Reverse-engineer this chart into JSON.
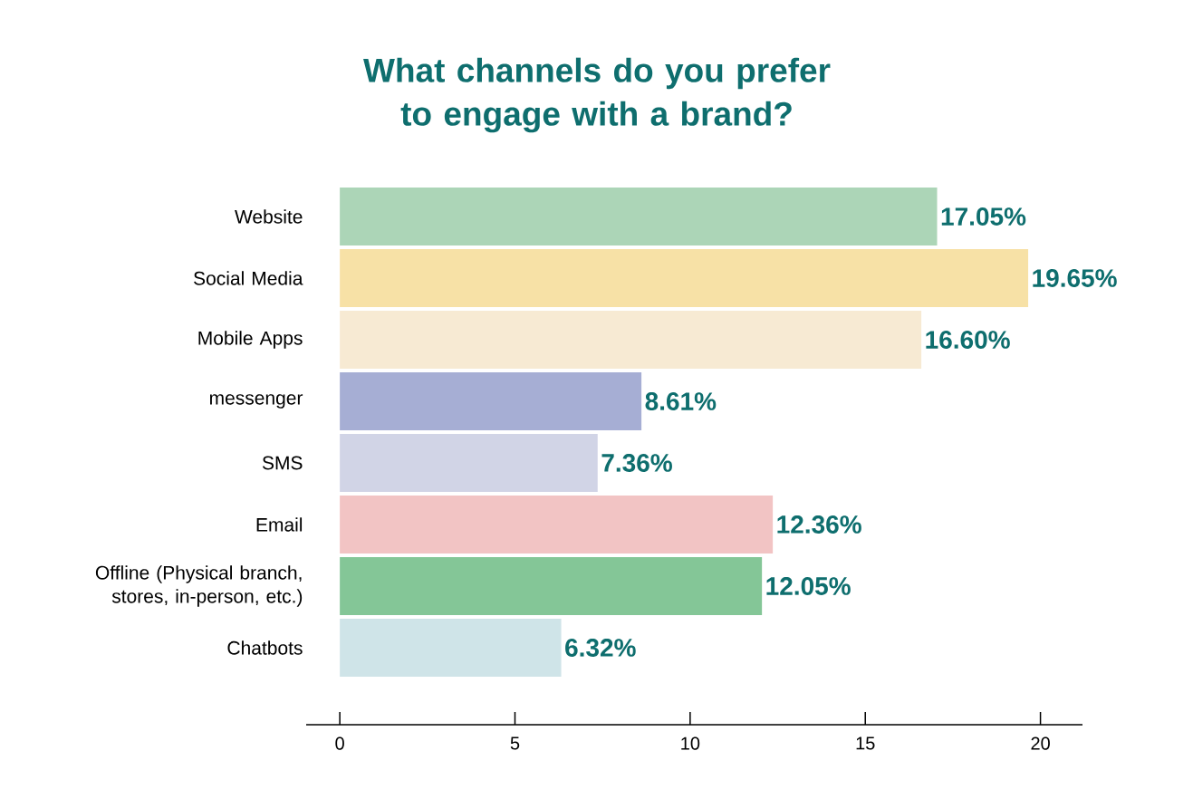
{
  "chart_data": {
    "type": "bar",
    "orientation": "horizontal",
    "title": "What channels do you prefer to engage with a brand?",
    "categories": [
      "Website",
      "Social Media",
      "Mobile Apps",
      "messenger",
      "SMS",
      "Email",
      "Offline (Physical branch, stores, in-person, etc.)",
      "Chatbots"
    ],
    "values": [
      17.05,
      19.65,
      16.6,
      8.61,
      7.36,
      12.36,
      12.05,
      6.32
    ],
    "value_labels": [
      "17.05%",
      "19.65%",
      "16.60%",
      "8.61%",
      "7.36%",
      "12.36%",
      "12.05%",
      "6.32%"
    ],
    "colors": [
      "#acd5b7",
      "#f7e1a6",
      "#f7ead3",
      "#a6aed4",
      "#d1d4e6",
      "#f2c4c4",
      "#84c697",
      "#cfe4e8"
    ],
    "xlim": [
      -0.96,
      21.2
    ],
    "xticks": [
      0,
      5,
      10,
      15,
      20
    ]
  }
}
